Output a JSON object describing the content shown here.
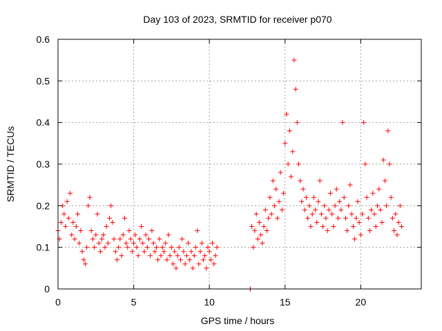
{
  "chart_data": {
    "type": "scatter",
    "title": "Day 103 of 2023, SRMTID for receiver p070",
    "xlabel": "GPS time / hours",
    "ylabel": "SRMTID / TECUs",
    "xlim": [
      0,
      24
    ],
    "ylim": [
      0,
      0.6
    ],
    "x_ticks": [
      0,
      5,
      10,
      15,
      20
    ],
    "y_ticks": [
      0,
      0.1,
      0.2,
      0.3,
      0.4,
      0.5,
      0.6
    ],
    "x_tick_labels": [
      "0",
      "5",
      "10",
      "15",
      "20"
    ],
    "y_tick_labels": [
      "0",
      "0.1",
      "0.2",
      "0.3",
      "0.4",
      "0.5",
      "0.6"
    ],
    "grid": true,
    "marker": "+",
    "color": "#ff0000",
    "series": [
      {
        "name": "SRMTID",
        "points": [
          [
            0.0,
            0.14
          ],
          [
            0.1,
            0.12
          ],
          [
            0.2,
            0.16
          ],
          [
            0.3,
            0.2
          ],
          [
            0.4,
            0.18
          ],
          [
            0.5,
            0.15
          ],
          [
            0.6,
            0.21
          ],
          [
            0.7,
            0.17
          ],
          [
            0.8,
            0.23
          ],
          [
            0.9,
            0.13
          ],
          [
            1.0,
            0.16
          ],
          [
            1.1,
            0.12
          ],
          [
            1.2,
            0.15
          ],
          [
            1.3,
            0.18
          ],
          [
            1.4,
            0.11
          ],
          [
            1.5,
            0.14
          ],
          [
            1.6,
            0.09
          ],
          [
            1.7,
            0.07
          ],
          [
            1.8,
            0.06
          ],
          [
            1.9,
            0.1
          ],
          [
            2.0,
            0.2
          ],
          [
            2.1,
            0.22
          ],
          [
            2.2,
            0.14
          ],
          [
            2.3,
            0.12
          ],
          [
            2.4,
            0.1
          ],
          [
            2.5,
            0.13
          ],
          [
            2.6,
            0.18
          ],
          [
            2.7,
            0.11
          ],
          [
            2.8,
            0.09
          ],
          [
            2.9,
            0.12
          ],
          [
            3.0,
            0.13
          ],
          [
            3.1,
            0.1
          ],
          [
            3.2,
            0.15
          ],
          [
            3.3,
            0.11
          ],
          [
            3.4,
            0.17
          ],
          [
            3.5,
            0.2
          ],
          [
            3.6,
            0.16
          ],
          [
            3.7,
            0.12
          ],
          [
            3.8,
            0.09
          ],
          [
            3.9,
            0.07
          ],
          [
            4.0,
            0.1
          ],
          [
            4.1,
            0.12
          ],
          [
            4.2,
            0.08
          ],
          [
            4.3,
            0.13
          ],
          [
            4.4,
            0.17
          ],
          [
            4.5,
            0.11
          ],
          [
            4.6,
            0.1
          ],
          [
            4.7,
            0.14
          ],
          [
            4.8,
            0.12
          ],
          [
            4.9,
            0.09
          ],
          [
            5.0,
            0.11
          ],
          [
            5.1,
            0.13
          ],
          [
            5.2,
            0.1
          ],
          [
            5.3,
            0.08
          ],
          [
            5.4,
            0.12
          ],
          [
            5.5,
            0.15
          ],
          [
            5.6,
            0.11
          ],
          [
            5.7,
            0.09
          ],
          [
            5.8,
            0.13
          ],
          [
            5.9,
            0.1
          ],
          [
            6.0,
            0.12
          ],
          [
            6.1,
            0.08
          ],
          [
            6.2,
            0.14
          ],
          [
            6.3,
            0.11
          ],
          [
            6.4,
            0.09
          ],
          [
            6.5,
            0.1
          ],
          [
            6.6,
            0.07
          ],
          [
            6.7,
            0.12
          ],
          [
            6.8,
            0.08
          ],
          [
            6.9,
            0.1
          ],
          [
            7.0,
            0.09
          ],
          [
            7.1,
            0.11
          ],
          [
            7.2,
            0.07
          ],
          [
            7.3,
            0.13
          ],
          [
            7.4,
            0.08
          ],
          [
            7.5,
            0.1
          ],
          [
            7.6,
            0.06
          ],
          [
            7.7,
            0.09
          ],
          [
            7.8,
            0.05
          ],
          [
            7.9,
            0.08
          ],
          [
            8.0,
            0.1
          ],
          [
            8.1,
            0.07
          ],
          [
            8.2,
            0.12
          ],
          [
            8.3,
            0.09
          ],
          [
            8.4,
            0.06
          ],
          [
            8.5,
            0.08
          ],
          [
            8.6,
            0.11
          ],
          [
            8.7,
            0.07
          ],
          [
            8.8,
            0.09
          ],
          [
            8.9,
            0.05
          ],
          [
            9.0,
            0.08
          ],
          [
            9.1,
            0.1
          ],
          [
            9.2,
            0.14
          ],
          [
            9.3,
            0.06
          ],
          [
            9.4,
            0.09
          ],
          [
            9.5,
            0.11
          ],
          [
            9.6,
            0.07
          ],
          [
            9.7,
            0.08
          ],
          [
            9.8,
            0.05
          ],
          [
            9.9,
            0.1
          ],
          [
            10.0,
            0.09
          ],
          [
            10.1,
            0.07
          ],
          [
            10.2,
            0.11
          ],
          [
            10.3,
            0.06
          ],
          [
            10.4,
            0.08
          ],
          [
            10.5,
            0.1
          ],
          [
            12.7,
            0.0
          ],
          [
            12.7,
            0.0
          ],
          [
            12.8,
            0.15
          ],
          [
            12.9,
            0.1
          ],
          [
            13.0,
            0.14
          ],
          [
            13.1,
            0.18
          ],
          [
            13.2,
            0.12
          ],
          [
            13.3,
            0.16
          ],
          [
            13.4,
            0.13
          ],
          [
            13.5,
            0.11
          ],
          [
            13.6,
            0.15
          ],
          [
            13.7,
            0.19
          ],
          [
            13.8,
            0.14
          ],
          [
            13.9,
            0.17
          ],
          [
            14.0,
            0.22
          ],
          [
            14.1,
            0.18
          ],
          [
            14.2,
            0.26
          ],
          [
            14.3,
            0.2
          ],
          [
            14.4,
            0.24
          ],
          [
            14.5,
            0.17
          ],
          [
            14.6,
            0.21
          ],
          [
            14.7,
            0.28
          ],
          [
            14.8,
            0.19
          ],
          [
            14.9,
            0.23
          ],
          [
            15.0,
            0.35
          ],
          [
            15.1,
            0.42
          ],
          [
            15.2,
            0.3
          ],
          [
            15.3,
            0.38
          ],
          [
            15.4,
            0.27
          ],
          [
            15.5,
            0.33
          ],
          [
            15.6,
            0.55
          ],
          [
            15.7,
            0.48
          ],
          [
            15.8,
            0.4
          ],
          [
            15.9,
            0.3
          ],
          [
            16.0,
            0.26
          ],
          [
            16.1,
            0.21
          ],
          [
            16.2,
            0.24
          ],
          [
            16.3,
            0.19
          ],
          [
            16.4,
            0.22
          ],
          [
            16.5,
            0.17
          ],
          [
            16.6,
            0.2
          ],
          [
            16.7,
            0.15
          ],
          [
            16.8,
            0.18
          ],
          [
            16.9,
            0.22
          ],
          [
            17.0,
            0.19
          ],
          [
            17.1,
            0.16
          ],
          [
            17.2,
            0.21
          ],
          [
            17.3,
            0.26
          ],
          [
            17.4,
            0.18
          ],
          [
            17.5,
            0.15
          ],
          [
            17.6,
            0.2
          ],
          [
            17.7,
            0.17
          ],
          [
            17.8,
            0.14
          ],
          [
            17.9,
            0.19
          ],
          [
            18.0,
            0.23
          ],
          [
            18.1,
            0.18
          ],
          [
            18.2,
            0.15
          ],
          [
            18.3,
            0.2
          ],
          [
            18.4,
            0.24
          ],
          [
            18.5,
            0.17
          ],
          [
            18.6,
            0.21
          ],
          [
            18.7,
            0.19
          ],
          [
            18.8,
            0.4
          ],
          [
            18.9,
            0.22
          ],
          [
            19.0,
            0.17
          ],
          [
            19.1,
            0.14
          ],
          [
            19.2,
            0.2
          ],
          [
            19.3,
            0.25
          ],
          [
            19.4,
            0.18
          ],
          [
            19.5,
            0.15
          ],
          [
            19.6,
            0.12
          ],
          [
            19.7,
            0.17
          ],
          [
            19.8,
            0.21
          ],
          [
            19.9,
            0.16
          ],
          [
            20.0,
            0.13
          ],
          [
            20.1,
            0.18
          ],
          [
            20.2,
            0.4
          ],
          [
            20.3,
            0.3
          ],
          [
            20.4,
            0.22
          ],
          [
            20.5,
            0.17
          ],
          [
            20.6,
            0.14
          ],
          [
            20.7,
            0.19
          ],
          [
            20.8,
            0.23
          ],
          [
            20.9,
            0.18
          ],
          [
            21.0,
            0.15
          ],
          [
            21.1,
            0.2
          ],
          [
            21.2,
            0.24
          ],
          [
            21.3,
            0.19
          ],
          [
            21.4,
            0.16
          ],
          [
            21.5,
            0.31
          ],
          [
            21.6,
            0.26
          ],
          [
            21.7,
            0.2
          ],
          [
            21.8,
            0.38
          ],
          [
            21.9,
            0.3
          ],
          [
            22.0,
            0.22
          ],
          [
            22.1,
            0.17
          ],
          [
            22.2,
            0.14
          ],
          [
            22.3,
            0.18
          ],
          [
            22.4,
            0.13
          ],
          [
            22.5,
            0.16
          ],
          [
            22.6,
            0.2
          ],
          [
            22.7,
            0.15
          ]
        ]
      }
    ]
  }
}
